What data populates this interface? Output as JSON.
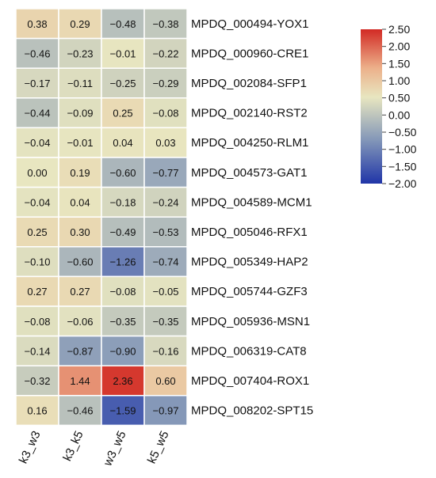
{
  "chart_data": {
    "type": "heatmap",
    "columns": [
      "k3_w3",
      "k3_k5",
      "w3_w5",
      "k5_w5"
    ],
    "rows": [
      "MPDQ_000494-YOX1",
      "MPDQ_000960-CRE1",
      "MPDQ_002084-SFP1",
      "MPDQ_002140-RST2",
      "MPDQ_004250-RLM1",
      "MPDQ_004573-GAT1",
      "MPDQ_004589-MCM1",
      "MPDQ_005046-RFX1",
      "MPDQ_005349-HAP2",
      "MPDQ_005744-GZF3",
      "MPDQ_005936-MSN1",
      "MPDQ_006319-CAT8",
      "MPDQ_007404-ROX1",
      "MPDQ_008202-SPT15"
    ],
    "values": [
      [
        0.38,
        0.29,
        -0.48,
        -0.38
      ],
      [
        -0.46,
        -0.23,
        -0.01,
        -0.22
      ],
      [
        -0.17,
        -0.11,
        -0.25,
        -0.29
      ],
      [
        -0.44,
        -0.09,
        0.25,
        -0.08
      ],
      [
        -0.04,
        -0.01,
        0.04,
        0.03
      ],
      [
        0.0,
        0.19,
        -0.6,
        -0.77
      ],
      [
        -0.04,
        0.04,
        -0.18,
        -0.24
      ],
      [
        0.25,
        0.3,
        -0.49,
        -0.53
      ],
      [
        -0.1,
        -0.6,
        -1.26,
        -0.74
      ],
      [
        0.27,
        0.27,
        -0.08,
        -0.05
      ],
      [
        -0.08,
        -0.06,
        -0.35,
        -0.35
      ],
      [
        -0.14,
        -0.87,
        -0.9,
        -0.16
      ],
      [
        -0.32,
        1.44,
        2.36,
        0.6
      ],
      [
        0.16,
        -0.46,
        -1.59,
        -0.97
      ]
    ],
    "value_labels": [
      [
        "0.38",
        "0.29",
        "−0.48",
        "−0.38"
      ],
      [
        "−0.46",
        "−0.23",
        "−0.01",
        "−0.22"
      ],
      [
        "−0.17",
        "−0.11",
        "−0.25",
        "−0.29"
      ],
      [
        "−0.44",
        "−0.09",
        "0.25",
        "−0.08"
      ],
      [
        "−0.04",
        "−0.01",
        "0.04",
        "0.03"
      ],
      [
        "0.00",
        "0.19",
        "−0.60",
        "−0.77"
      ],
      [
        "−0.04",
        "0.04",
        "−0.18",
        "−0.24"
      ],
      [
        "0.25",
        "0.30",
        "−0.49",
        "−0.53"
      ],
      [
        "−0.10",
        "−0.60",
        "−1.26",
        "−0.74"
      ],
      [
        "0.27",
        "0.27",
        "−0.08",
        "−0.05"
      ],
      [
        "−0.08",
        "−0.06",
        "−0.35",
        "−0.35"
      ],
      [
        "−0.14",
        "−0.87",
        "−0.90",
        "−0.16"
      ],
      [
        "−0.32",
        "1.44",
        "2.36",
        "0.60"
      ],
      [
        "0.16",
        "−0.46",
        "−1.59",
        "−0.97"
      ]
    ],
    "colorbar": {
      "min": -2.0,
      "max": 2.5,
      "ticks": [
        2.5,
        2.0,
        1.5,
        1.0,
        0.5,
        0.0,
        -0.5,
        -1.0,
        -1.5,
        -2.0
      ],
      "tick_labels": [
        "2.50",
        "2.00",
        "1.50",
        "1.00",
        "0.50",
        "0.00",
        "−0.50",
        "−1.00",
        "−1.50",
        "−2.00"
      ],
      "colors": [
        "#2035a8",
        "#e8e6c0",
        "#d22a24"
      ],
      "placement": "right"
    },
    "cell_border_color": "#ffffff"
  }
}
